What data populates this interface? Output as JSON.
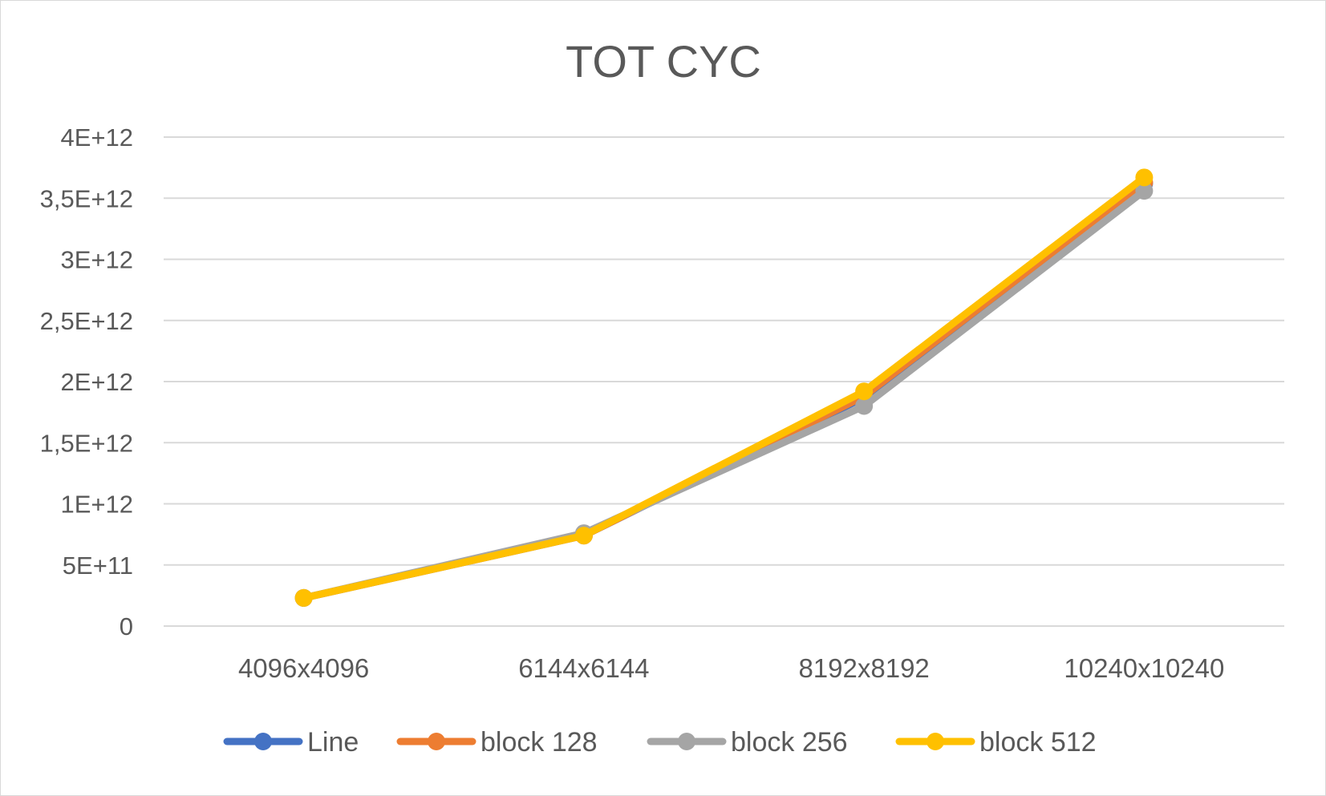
{
  "chart_data": {
    "type": "line",
    "title": "TOT CYC",
    "xlabel": "",
    "ylabel": "",
    "categories": [
      "4096x4096",
      "6144x6144",
      "8192x8192",
      "10240x10240"
    ],
    "ylim": [
      0,
      4000000000000
    ],
    "yticks": [
      {
        "value": 0,
        "label": "0"
      },
      {
        "value": 500000000000,
        "label": "5E+11"
      },
      {
        "value": 1000000000000,
        "label": "1E+12"
      },
      {
        "value": 1500000000000,
        "label": "1,5E+12"
      },
      {
        "value": 2000000000000,
        "label": "2E+12"
      },
      {
        "value": 2500000000000,
        "label": "2,5E+12"
      },
      {
        "value": 3000000000000,
        "label": "3E+12"
      },
      {
        "value": 3500000000000,
        "label": "3,5E+12"
      },
      {
        "value": 4000000000000,
        "label": "4E+12"
      }
    ],
    "grid": true,
    "legend_position": "bottom",
    "series": [
      {
        "name": "Line",
        "color": "#4472C4",
        "values": [
          230000000000,
          740000000000,
          1870000000000,
          3620000000000
        ]
      },
      {
        "name": "block 128",
        "color": "#ED7D31",
        "values": [
          230000000000,
          740000000000,
          1880000000000,
          3630000000000
        ]
      },
      {
        "name": "block 256",
        "color": "#A5A5A5",
        "values": [
          230000000000,
          760000000000,
          1800000000000,
          3560000000000
        ]
      },
      {
        "name": "block 512",
        "color": "#FFC000",
        "values": [
          230000000000,
          740000000000,
          1920000000000,
          3670000000000
        ]
      }
    ]
  }
}
